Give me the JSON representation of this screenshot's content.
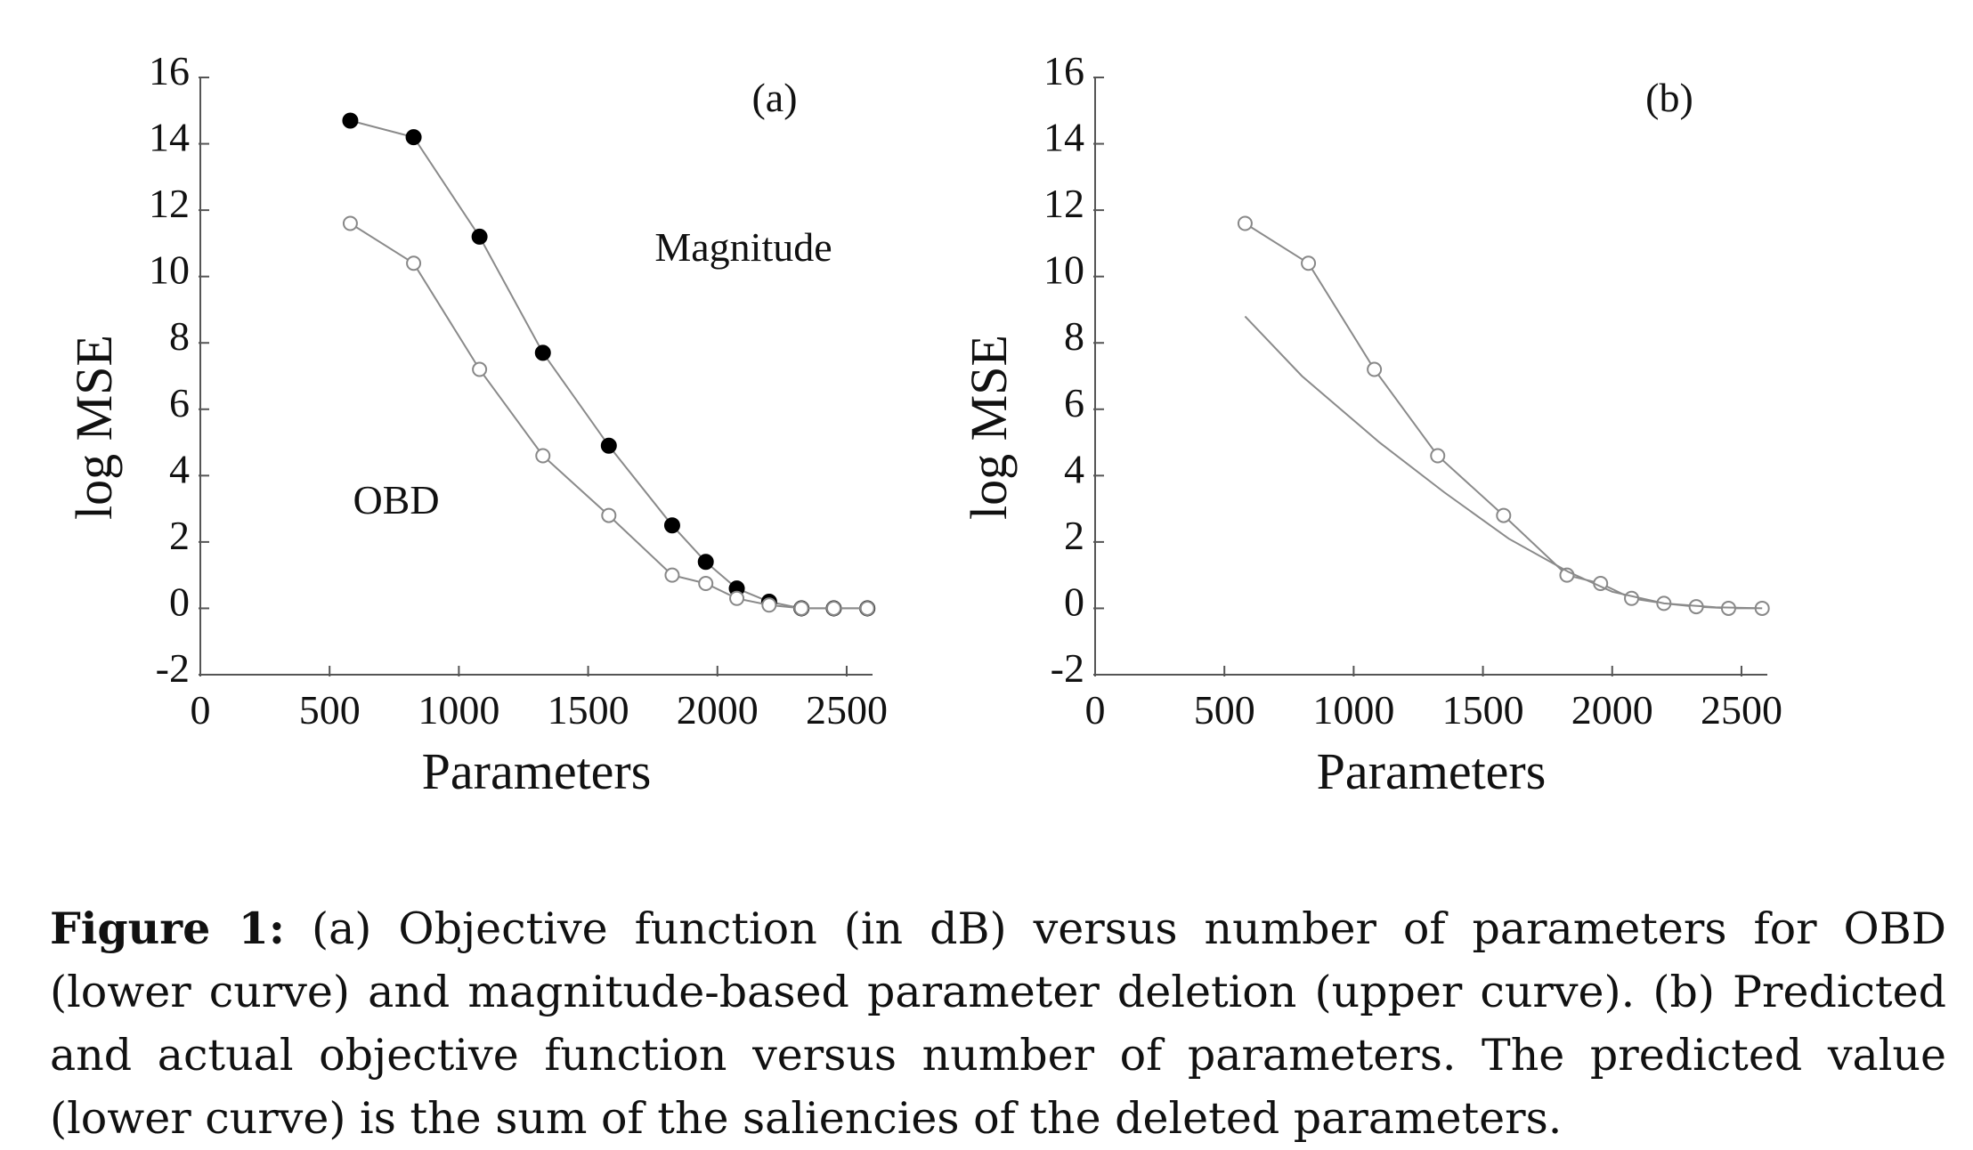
{
  "chart_data": [
    {
      "type": "line",
      "panel_label": "(a)",
      "xlabel": "Parameters",
      "ylabel": "log MSE",
      "xlim": [
        0,
        2600
      ],
      "ylim": [
        -2,
        16
      ],
      "xticks": [
        "0",
        "500",
        "1000",
        "1500",
        "2000",
        "2500"
      ],
      "yticks": [
        "-2",
        "0",
        "2",
        "4",
        "6",
        "8",
        "10",
        "12",
        "14",
        "16"
      ],
      "annotations": [
        {
          "text": "Magnitude",
          "target": "upper curve"
        },
        {
          "text": "OBD",
          "target": "lower curve"
        }
      ],
      "series": [
        {
          "marker": "filled-circle",
          "x": [
            580,
            825,
            1080,
            1325,
            1580,
            1825,
            1955,
            2075,
            2200,
            2325,
            2450,
            2580
          ],
          "y": [
            14.7,
            14.2,
            11.2,
            7.7,
            4.9,
            2.5,
            1.4,
            0.6,
            0.2,
            0.0,
            0.0,
            0.0
          ]
        },
        {
          "marker": "open-circle",
          "x": [
            580,
            825,
            1080,
            1325,
            1580,
            1825,
            1955,
            2075,
            2200,
            2325,
            2450,
            2580
          ],
          "y": [
            11.6,
            10.4,
            7.2,
            4.6,
            2.8,
            1.0,
            0.75,
            0.3,
            0.1,
            0.0,
            0.0,
            0.0
          ]
        }
      ]
    },
    {
      "type": "line",
      "panel_label": "(b)",
      "xlabel": "Parameters",
      "ylabel": "log MSE",
      "xlim": [
        0,
        2600
      ],
      "ylim": [
        -2,
        16
      ],
      "xticks": [
        "0",
        "500",
        "1000",
        "1500",
        "2000",
        "2500"
      ],
      "yticks": [
        "-2",
        "0",
        "2",
        "4",
        "6",
        "8",
        "10",
        "12",
        "14",
        "16"
      ],
      "series": [
        {
          "marker": "open-circle",
          "x": [
            580,
            825,
            1080,
            1325,
            1580,
            1825,
            1955,
            2075,
            2200,
            2325,
            2450,
            2580
          ],
          "y": [
            11.6,
            10.4,
            7.2,
            4.6,
            2.8,
            1.0,
            0.75,
            0.3,
            0.15,
            0.05,
            0.0,
            0.0
          ]
        },
        {
          "marker": "none",
          "x": [
            580,
            800,
            1100,
            1350,
            1600,
            1830,
            2000,
            2200,
            2400,
            2580
          ],
          "y": [
            8.8,
            7.0,
            5.0,
            3.5,
            2.1,
            1.1,
            0.5,
            0.15,
            0.03,
            0.0
          ]
        }
      ]
    }
  ],
  "caption": {
    "label": "Figure 1:",
    "text": "(a) Objective function (in dB) versus number of parameters for OBD (lower curve) and magnitude-based parameter deletion (upper curve). (b) Predicted and actual objective function versus number of parameters. The predicted value (lower curve) is the sum of the saliencies of the deleted parameters."
  }
}
